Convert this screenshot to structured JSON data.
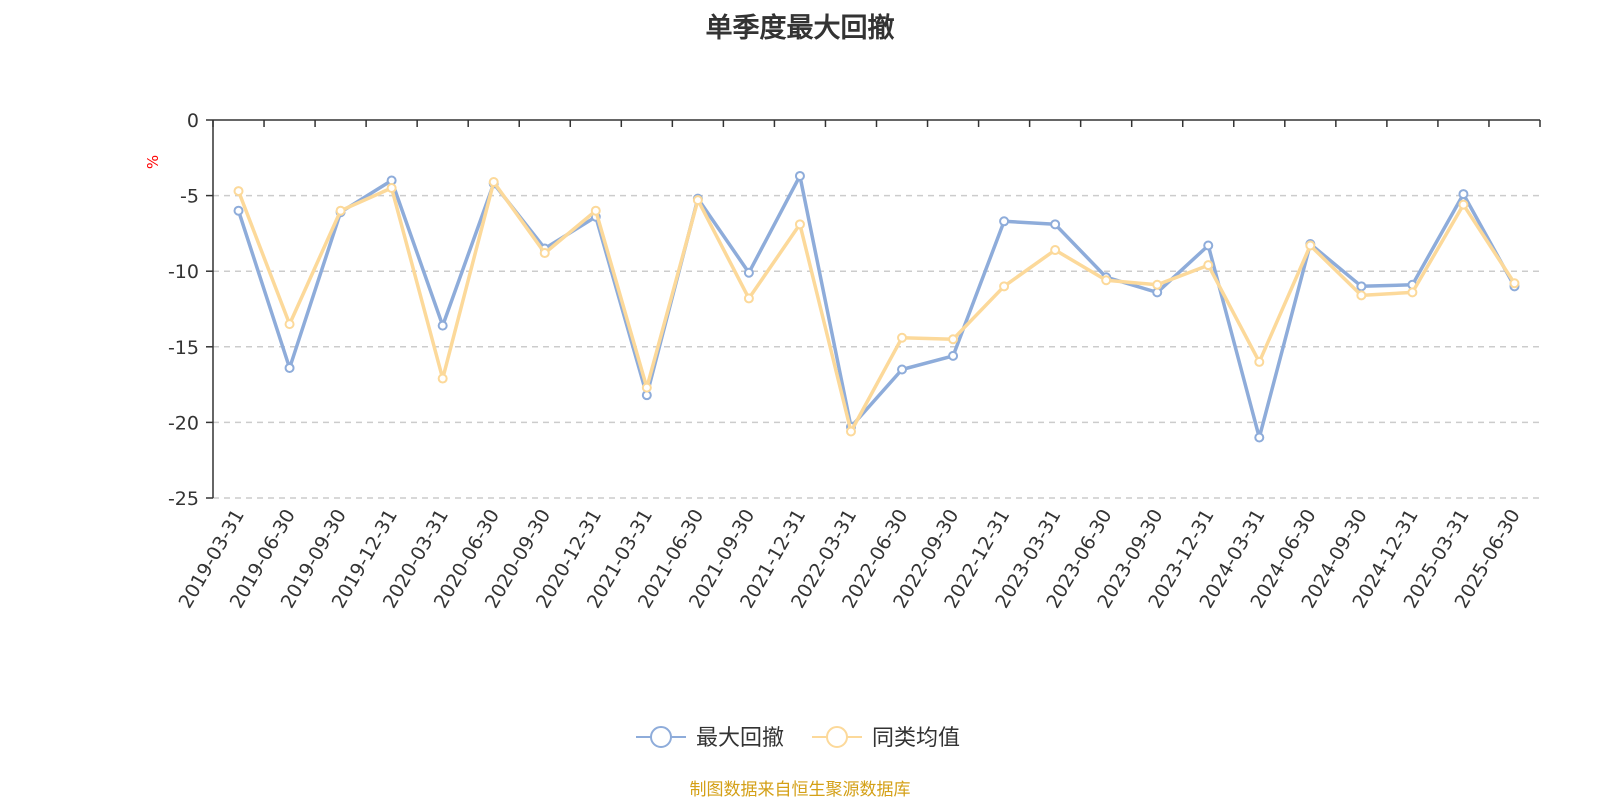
{
  "chart_data": {
    "type": "line",
    "title": "单季度最大回撤",
    "ylabel": "%",
    "xlabel": "",
    "ylim": [
      -25,
      0
    ],
    "yticks": [
      0,
      -5,
      -10,
      -15,
      -20,
      -25
    ],
    "grid": "horizontal dashed",
    "legend_position": "bottom-center",
    "categories": [
      "2019-03-31",
      "2019-06-30",
      "2019-09-30",
      "2019-12-31",
      "2020-03-31",
      "2020-06-30",
      "2020-09-30",
      "2020-12-31",
      "2021-03-31",
      "2021-06-30",
      "2021-09-30",
      "2021-12-31",
      "2022-03-31",
      "2022-06-30",
      "2022-09-30",
      "2022-12-31",
      "2023-03-31",
      "2023-06-30",
      "2023-09-30",
      "2023-12-31",
      "2024-03-31",
      "2024-06-30",
      "2024-09-30",
      "2024-12-31",
      "2025-03-31",
      "2025-06-30"
    ],
    "series": [
      {
        "name": "最大回撤",
        "color": "#8eacda",
        "values": [
          -6.0,
          -16.4,
          -6.1,
          -4.0,
          -13.6,
          -4.2,
          -8.5,
          -6.4,
          -18.2,
          -5.2,
          -10.1,
          -3.7,
          -20.3,
          -16.5,
          -15.6,
          -6.7,
          -6.9,
          -10.4,
          -11.4,
          -8.3,
          -21.0,
          -8.2,
          -11.0,
          -10.9,
          -4.9,
          -11.0
        ]
      },
      {
        "name": "同类均值",
        "color": "#fcd99a",
        "values": [
          -4.7,
          -13.5,
          -6.0,
          -4.5,
          -17.1,
          -4.1,
          -8.8,
          -6.0,
          -17.7,
          -5.3,
          -11.8,
          -6.9,
          -20.6,
          -14.4,
          -14.5,
          -11.0,
          -8.6,
          -10.6,
          -10.9,
          -9.6,
          -16.0,
          -8.3,
          -11.6,
          -11.4,
          -5.6,
          -10.8
        ]
      }
    ]
  },
  "source_note": "制图数据来自恒生聚源数据库"
}
